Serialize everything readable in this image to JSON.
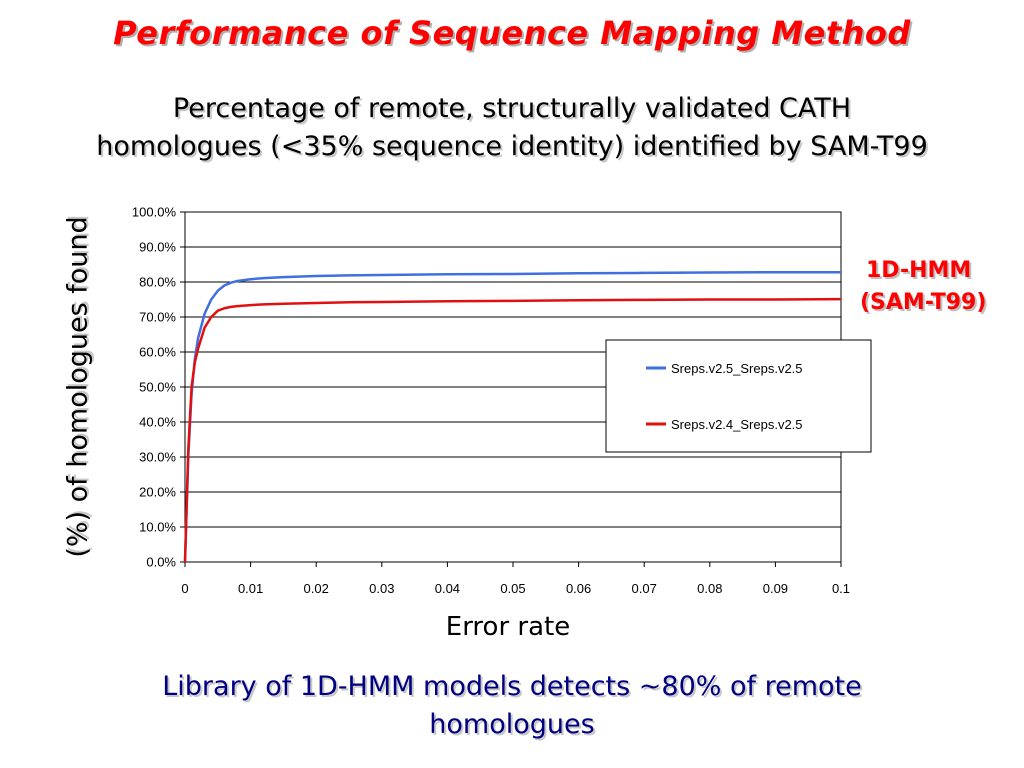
{
  "slide": {
    "title": "Performance of Sequence Mapping Method",
    "subtitle_line1": "Percentage of remote, structurally validated CATH",
    "subtitle_line2": "homologues (<35% sequence identity) identified by SAM-T99",
    "model_label_line1": "1D-HMM",
    "model_label_line2": "(SAM-T99)",
    "conclusion_line1": "Library of 1D-HMM models detects ~80% of remote",
    "conclusion_line2": "homologues"
  },
  "colors": {
    "title": "#ff0000",
    "conclusion": "#000080",
    "series_blue": "#3f6fe0",
    "series_red": "#e01010"
  },
  "chart_data": {
    "type": "line",
    "title": "",
    "xlabel": "Error rate",
    "ylabel": "(%) of homologues found",
    "xlim": [
      0,
      0.1
    ],
    "ylim": [
      0,
      100
    ],
    "grid": true,
    "legend_position": "right",
    "x_ticks": [
      "0",
      "0.01",
      "0.02",
      "0.03",
      "0.04",
      "0.05",
      "0.06",
      "0.07",
      "0.08",
      "0.09",
      "0.1"
    ],
    "y_ticks": [
      "0.0%",
      "10.0%",
      "20.0%",
      "30.0%",
      "40.0%",
      "50.0%",
      "60.0%",
      "70.0%",
      "80.0%",
      "90.0%",
      "100.0%"
    ],
    "series": [
      {
        "name": "Sreps.v2.5_Sreps.v2.5",
        "color": "#3f6fe0",
        "x": [
          0,
          0.0005,
          0.001,
          0.0015,
          0.002,
          0.003,
          0.004,
          0.005,
          0.006,
          0.007,
          0.008,
          0.01,
          0.012,
          0.015,
          0.02,
          0.025,
          0.03,
          0.04,
          0.05,
          0.06,
          0.07,
          0.08,
          0.09,
          0.1
        ],
        "y": [
          0,
          30,
          48,
          58,
          64,
          71,
          75,
          77.5,
          79,
          79.8,
          80.3,
          80.8,
          81.1,
          81.4,
          81.7,
          81.9,
          82.0,
          82.2,
          82.3,
          82.5,
          82.6,
          82.7,
          82.8,
          82.8
        ]
      },
      {
        "name": "Sreps.v2.4_Sreps.v2.5",
        "color": "#e01010",
        "x": [
          0,
          0.0005,
          0.001,
          0.0015,
          0.002,
          0.003,
          0.004,
          0.005,
          0.006,
          0.007,
          0.008,
          0.01,
          0.012,
          0.015,
          0.02,
          0.025,
          0.03,
          0.04,
          0.05,
          0.06,
          0.07,
          0.08,
          0.09,
          0.1
        ],
        "y": [
          0,
          32,
          50,
          57,
          61,
          67,
          70,
          71.8,
          72.5,
          72.9,
          73.1,
          73.4,
          73.6,
          73.8,
          74.0,
          74.2,
          74.3,
          74.5,
          74.6,
          74.8,
          74.9,
          75.0,
          75.0,
          75.1
        ]
      }
    ]
  }
}
